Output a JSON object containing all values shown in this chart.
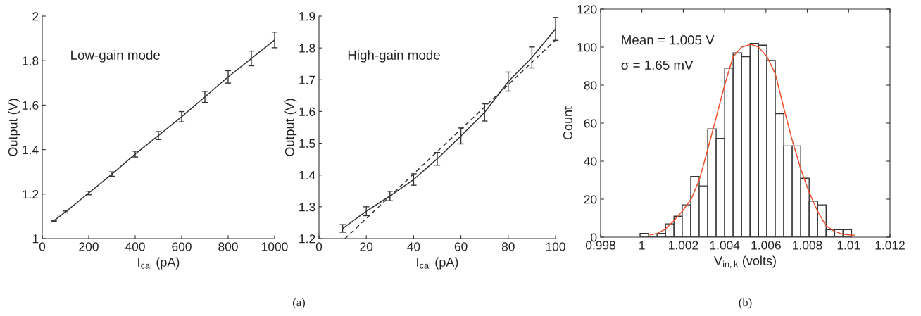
{
  "chart_data": [
    {
      "type": "line",
      "xlabel": "I$_{cal}$ (pA)",
      "ylabel": "Output (V)",
      "x": [
        50,
        100,
        200,
        300,
        400,
        500,
        600,
        700,
        800,
        900,
        1000
      ],
      "series": [
        {
          "color": "#333333",
          "values": [
            1.08,
            1.12,
            1.205,
            1.29,
            1.38,
            1.463,
            1.548,
            1.637,
            1.727,
            1.81,
            1.893
          ],
          "errors": [
            0.002,
            0.004,
            0.008,
            0.01,
            0.013,
            0.018,
            0.023,
            0.025,
            0.028,
            0.033,
            0.035
          ]
        }
      ],
      "xlim": [
        0,
        1000
      ],
      "xticks": [
        0,
        200,
        400,
        600,
        800,
        1000
      ],
      "ylim": [
        1,
        2
      ],
      "yticks": [
        1,
        1.2,
        1.4,
        1.6,
        1.8,
        2
      ],
      "annotations": [
        "Low-gain mode",
        "(a)"
      ]
    },
    {
      "type": "line",
      "xlabel": "I$_{cal}$ (pA)",
      "ylabel": "Output (V)",
      "x": [
        10,
        20,
        30,
        40,
        50,
        60,
        70,
        80,
        90,
        100
      ],
      "series": [
        {
          "color": "#333333",
          "values": [
            1.232,
            1.286,
            1.334,
            1.386,
            1.451,
            1.523,
            1.597,
            1.694,
            1.77,
            1.86
          ],
          "errors": [
            0.012,
            0.014,
            0.015,
            0.018,
            0.02,
            0.025,
            0.027,
            0.03,
            0.033,
            0.036
          ]
        },
        {
          "color": "#333333",
          "x": [
            11,
            100
          ],
          "values": [
            1.2,
            1.825
          ],
          "line_style": "dashed"
        }
      ],
      "xlim": [
        0,
        100
      ],
      "xticks": [
        0,
        20,
        40,
        60,
        80,
        100
      ],
      "ylim": [
        1.2,
        1.9
      ],
      "yticks": [
        1.2,
        1.3,
        1.4,
        1.5,
        1.6,
        1.7,
        1.8,
        1.9
      ],
      "annotations": [
        "High-gain mode"
      ]
    },
    {
      "type": "histogram",
      "xlabel": "V$_{in,k}$ (volts)",
      "ylabel": "Count",
      "color": "#333333",
      "bins": [
        0.99991,
        1.00032,
        1.00073,
        1.00114,
        1.00155,
        1.00195,
        1.00236,
        1.00277,
        1.00318,
        1.00359,
        1.004,
        1.00441,
        1.00482,
        1.00523,
        1.00564,
        1.00604,
        1.00645,
        1.00686,
        1.00727,
        1.00768,
        1.00809,
        1.0085,
        1.00891,
        1.00932,
        1.00973,
        1.01014
      ],
      "values": [
        2,
        0,
        2,
        7,
        11,
        17,
        32,
        27,
        57,
        52,
        89,
        97,
        95,
        102,
        101,
        93,
        65,
        48,
        48,
        31,
        19,
        17,
        4,
        4,
        4
      ],
      "series": [
        {
          "type": "line",
          "color": "#f0502a",
          "x": [
            1.00039,
            1.00073,
            1.00114,
            1.00155,
            1.00195,
            1.00238,
            1.00277,
            1.00318,
            1.00359,
            1.004,
            1.00441,
            1.00482,
            1.00527,
            1.00564,
            1.00605,
            1.00645,
            1.00686,
            1.00727,
            1.00768,
            1.00809,
            1.0085,
            1.00891,
            1.00932,
            1.00973,
            1.01027
          ],
          "values": [
            1.2,
            1.9,
            4.3,
            8.7,
            13.6,
            20,
            30,
            46,
            63,
            80,
            95,
            100,
            101.5,
            100,
            95,
            86,
            68,
            51,
            36,
            23.5,
            13.6,
            6,
            3,
            1.5,
            1
          ]
        }
      ],
      "xlim": [
        0.998,
        1.012
      ],
      "xticks": [
        0.998,
        1,
        1.002,
        1.004,
        1.006,
        1.008,
        1.01,
        1.012
      ],
      "ylim": [
        0,
        120
      ],
      "yticks": [
        0,
        20,
        40,
        60,
        80,
        100,
        120
      ],
      "annotations": [
        "Mean = 1.005 V",
        "σ = 1.65 mV",
        "(b)"
      ]
    }
  ]
}
